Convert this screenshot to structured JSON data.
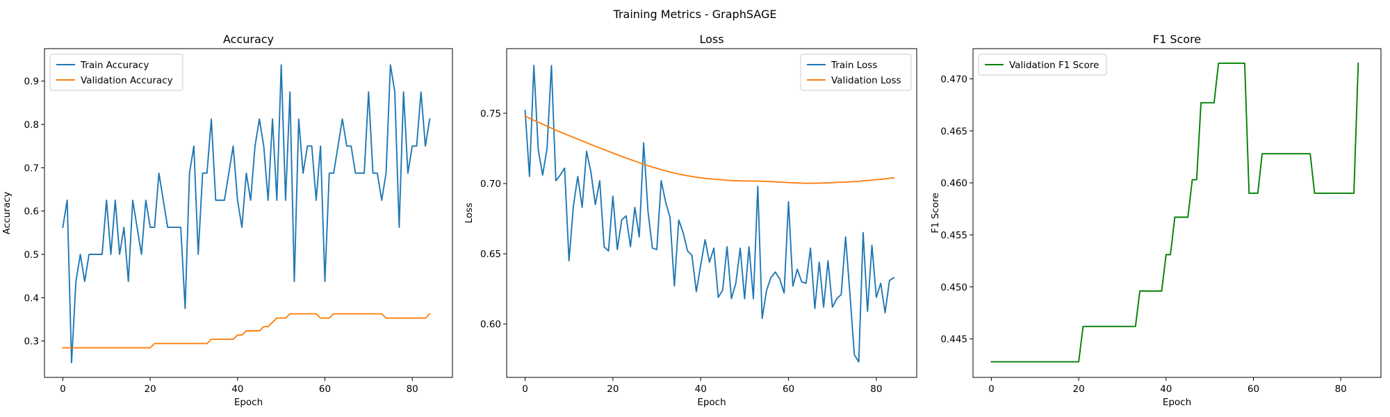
{
  "figure": {
    "suptitle": "Training Metrics - GraphSAGE"
  },
  "chart_data": [
    {
      "type": "line",
      "title": "Accuracy",
      "xlabel": "Epoch",
      "ylabel": "Accuracy",
      "xlim": [
        -4.2,
        89.2
      ],
      "ylim": [
        0.216,
        0.975
      ],
      "xticks": [
        0,
        20,
        40,
        60,
        80
      ],
      "yticks": [
        0.3,
        0.4,
        0.5,
        0.6,
        0.7,
        0.8,
        0.9
      ],
      "ytick_decimals": 1,
      "grid": false,
      "legend_position": "upper left",
      "series": [
        {
          "name": "Train Accuracy",
          "color": "#1f77b4",
          "values": [
            0.5625,
            0.625,
            0.25,
            0.4375,
            0.5,
            0.4375,
            0.5,
            0.5,
            0.5,
            0.5,
            0.625,
            0.5,
            0.625,
            0.5,
            0.5625,
            0.4375,
            0.625,
            0.5625,
            0.5,
            0.625,
            0.5625,
            0.5625,
            0.6875,
            0.625,
            0.5625,
            0.5625,
            0.5625,
            0.5625,
            0.375,
            0.6875,
            0.75,
            0.5,
            0.6875,
            0.6875,
            0.8125,
            0.625,
            0.625,
            0.625,
            0.6875,
            0.75,
            0.625,
            0.5625,
            0.6875,
            0.625,
            0.75,
            0.8125,
            0.75,
            0.625,
            0.8125,
            0.625,
            0.9375,
            0.625,
            0.875,
            0.4375,
            0.8125,
            0.6875,
            0.75,
            0.75,
            0.625,
            0.75,
            0.4375,
            0.6875,
            0.6875,
            0.75,
            0.8125,
            0.75,
            0.75,
            0.6875,
            0.6875,
            0.6875,
            0.875,
            0.6875,
            0.6875,
            0.625,
            0.6875,
            0.9375,
            0.875,
            0.5625,
            0.875,
            0.6875,
            0.75,
            0.75,
            0.875,
            0.75,
            0.8125
          ]
        },
        {
          "name": "Validation Accuracy",
          "color": "#ff7f0e",
          "values": [
            0.2843,
            0.2843,
            0.2843,
            0.2843,
            0.2843,
            0.2843,
            0.2843,
            0.2843,
            0.2843,
            0.2843,
            0.2843,
            0.2843,
            0.2843,
            0.2843,
            0.2843,
            0.2843,
            0.2843,
            0.2843,
            0.2843,
            0.2843,
            0.2843,
            0.2941,
            0.2941,
            0.2941,
            0.2941,
            0.2941,
            0.2941,
            0.2941,
            0.2941,
            0.2941,
            0.2941,
            0.2941,
            0.2941,
            0.2941,
            0.3039,
            0.3039,
            0.3039,
            0.3039,
            0.3039,
            0.3039,
            0.3137,
            0.3137,
            0.3235,
            0.3235,
            0.3235,
            0.3235,
            0.3333,
            0.3333,
            0.3431,
            0.3529,
            0.3529,
            0.3529,
            0.3627,
            0.3627,
            0.3627,
            0.3627,
            0.3627,
            0.3627,
            0.3627,
            0.3529,
            0.3529,
            0.3529,
            0.3627,
            0.3627,
            0.3627,
            0.3627,
            0.3627,
            0.3627,
            0.3627,
            0.3627,
            0.3627,
            0.3627,
            0.3627,
            0.3627,
            0.3529,
            0.3529,
            0.3529,
            0.3529,
            0.3529,
            0.3529,
            0.3529,
            0.3529,
            0.3529,
            0.3529,
            0.3627
          ]
        }
      ]
    },
    {
      "type": "line",
      "title": "Loss",
      "xlabel": "Epoch",
      "ylabel": "Loss",
      "xlim": [
        -4.2,
        89.2
      ],
      "ylim": [
        0.562,
        0.796
      ],
      "xticks": [
        0,
        20,
        40,
        60,
        80
      ],
      "yticks": [
        0.6,
        0.65,
        0.7,
        0.75
      ],
      "ytick_decimals": 2,
      "grid": false,
      "legend_position": "upper right",
      "series": [
        {
          "name": "Train Loss",
          "color": "#1f77b4",
          "values": [
            0.752,
            0.705,
            0.784,
            0.724,
            0.706,
            0.725,
            0.784,
            0.702,
            0.706,
            0.711,
            0.645,
            0.684,
            0.705,
            0.683,
            0.723,
            0.708,
            0.685,
            0.702,
            0.655,
            0.652,
            0.691,
            0.653,
            0.674,
            0.677,
            0.655,
            0.683,
            0.662,
            0.729,
            0.68,
            0.654,
            0.653,
            0.702,
            0.687,
            0.676,
            0.627,
            0.674,
            0.665,
            0.652,
            0.649,
            0.623,
            0.642,
            0.66,
            0.644,
            0.654,
            0.619,
            0.624,
            0.655,
            0.618,
            0.629,
            0.654,
            0.618,
            0.655,
            0.618,
            0.698,
            0.604,
            0.624,
            0.633,
            0.637,
            0.632,
            0.622,
            0.687,
            0.627,
            0.639,
            0.63,
            0.629,
            0.654,
            0.611,
            0.644,
            0.612,
            0.645,
            0.612,
            0.618,
            0.621,
            0.662,
            0.621,
            0.578,
            0.573,
            0.665,
            0.609,
            0.656,
            0.619,
            0.629,
            0.608,
            0.631,
            0.633
          ]
        },
        {
          "name": "Validation Loss",
          "color": "#ff7f0e",
          "values": [
            0.748,
            0.7465,
            0.745,
            0.7436,
            0.7422,
            0.7408,
            0.7394,
            0.738,
            0.7367,
            0.7354,
            0.7341,
            0.7328,
            0.7316,
            0.7303,
            0.729,
            0.7278,
            0.7265,
            0.7253,
            0.7241,
            0.7229,
            0.7217,
            0.7205,
            0.7193,
            0.7182,
            0.717,
            0.7159,
            0.7148,
            0.7137,
            0.7127,
            0.7117,
            0.7108,
            0.7099,
            0.709,
            0.7082,
            0.7074,
            0.7067,
            0.7061,
            0.7055,
            0.705,
            0.7045,
            0.7041,
            0.7037,
            0.7034,
            0.7031,
            0.7029,
            0.7026,
            0.7023,
            0.7021,
            0.702,
            0.7019,
            0.7018,
            0.7018,
            0.7017,
            0.7017,
            0.7016,
            0.7015,
            0.7014,
            0.7012,
            0.701,
            0.7009,
            0.7007,
            0.7005,
            0.7004,
            0.7003,
            0.7002,
            0.7002,
            0.7002,
            0.7003,
            0.7004,
            0.7005,
            0.7006,
            0.7008,
            0.7009,
            0.701,
            0.7012,
            0.7014,
            0.7016,
            0.7019,
            0.7021,
            0.7024,
            0.7027,
            0.703,
            0.7033,
            0.7037,
            0.704
          ]
        }
      ]
    },
    {
      "type": "line",
      "title": "F1 Score",
      "xlabel": "Epoch",
      "ylabel": "F1 Score",
      "xlim": [
        -4.2,
        89.2
      ],
      "ylim": [
        0.4413,
        0.4729
      ],
      "xticks": [
        0,
        20,
        40,
        60,
        80
      ],
      "yticks": [
        0.445,
        0.45,
        0.455,
        0.46,
        0.465,
        0.47
      ],
      "ytick_decimals": 3,
      "grid": false,
      "legend_position": "upper left",
      "series": [
        {
          "name": "Validation F1 Score",
          "color": "#008000",
          "values": [
            0.4428,
            0.4428,
            0.4428,
            0.4428,
            0.4428,
            0.4428,
            0.4428,
            0.4428,
            0.4428,
            0.4428,
            0.4428,
            0.4428,
            0.4428,
            0.4428,
            0.4428,
            0.4428,
            0.4428,
            0.4428,
            0.4428,
            0.4428,
            0.4428,
            0.4462,
            0.4462,
            0.4462,
            0.4462,
            0.4462,
            0.4462,
            0.4462,
            0.4462,
            0.4462,
            0.4462,
            0.4462,
            0.4462,
            0.4462,
            0.4496,
            0.4496,
            0.4496,
            0.4496,
            0.4496,
            0.4496,
            0.4531,
            0.4531,
            0.4567,
            0.4567,
            0.4567,
            0.4567,
            0.4603,
            0.4603,
            0.4677,
            0.4677,
            0.4677,
            0.4677,
            0.4715,
            0.4715,
            0.4715,
            0.4715,
            0.4715,
            0.4715,
            0.4715,
            0.459,
            0.459,
            0.459,
            0.4628,
            0.4628,
            0.4628,
            0.4628,
            0.4628,
            0.4628,
            0.4628,
            0.4628,
            0.4628,
            0.4628,
            0.4628,
            0.4628,
            0.459,
            0.459,
            0.459,
            0.459,
            0.459,
            0.459,
            0.459,
            0.459,
            0.459,
            0.459,
            0.4715
          ]
        }
      ]
    }
  ]
}
